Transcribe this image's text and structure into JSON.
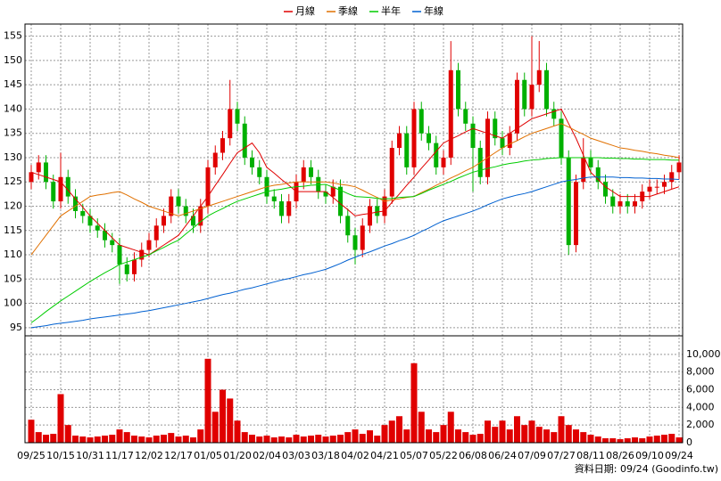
{
  "chart_data": {
    "type": "candlestick",
    "footer": "資料日期: 09/24  (Goodinfo.tw)",
    "categories": [
      "09/25",
      null,
      null,
      null,
      "10/15",
      null,
      null,
      null,
      "10/31",
      null,
      null,
      null,
      "11/17",
      null,
      null,
      null,
      "12/02",
      null,
      null,
      null,
      "12/17",
      null,
      null,
      null,
      "01/05",
      null,
      null,
      null,
      "01/20",
      null,
      null,
      null,
      "02/04",
      null,
      null,
      null,
      "03/03",
      null,
      null,
      null,
      "03/18",
      null,
      null,
      null,
      "04/02",
      null,
      null,
      null,
      "04/21",
      null,
      null,
      null,
      "05/07",
      null,
      null,
      null,
      "05/22",
      null,
      null,
      null,
      "06/08",
      null,
      null,
      null,
      "06/24",
      null,
      null,
      null,
      "07/09",
      null,
      null,
      null,
      "07/27",
      null,
      null,
      null,
      "08/11",
      null,
      null,
      null,
      "08/26",
      null,
      null,
      null,
      "09/10",
      null,
      null,
      null,
      "09/24"
    ],
    "up_color": "#e00000",
    "down_color": "#00b000",
    "open": [
      125,
      127,
      129,
      125,
      121,
      126,
      122,
      119,
      118,
      116,
      115,
      113,
      112,
      108,
      106,
      109,
      111,
      113,
      116,
      118,
      122,
      120,
      118,
      116,
      120,
      128,
      131,
      134,
      140,
      137,
      130,
      128,
      126,
      122,
      121,
      118,
      121,
      125,
      128,
      126,
      123,
      122,
      124,
      118,
      114,
      111,
      116,
      120,
      118,
      122,
      132,
      135,
      128,
      140,
      135,
      133,
      128,
      130,
      148,
      140,
      137,
      132,
      126,
      138,
      134,
      132,
      135,
      146,
      140,
      145,
      148,
      140,
      138,
      130,
      112,
      125,
      130,
      128,
      125,
      122,
      120,
      121,
      120,
      121,
      123,
      124,
      124,
      125,
      127
    ],
    "high": [
      128.5,
      130.5,
      130.5,
      126.5,
      131,
      127.5,
      123.5,
      120.5,
      119.5,
      117.5,
      116.5,
      114.5,
      113.5,
      109.5,
      110.5,
      112.5,
      114.5,
      117.5,
      119.5,
      123.5,
      123.5,
      121.5,
      119.5,
      121.5,
      129.5,
      132.5,
      135.5,
      146,
      141.5,
      138.5,
      131.5,
      129.5,
      127.5,
      123.5,
      122.5,
      122.5,
      126.5,
      129.5,
      129.5,
      127.5,
      124.5,
      125.5,
      125.5,
      119.5,
      115.5,
      117.5,
      121.5,
      121.5,
      123.5,
      133.5,
      136.5,
      136.5,
      141.5,
      141.5,
      136.5,
      134.5,
      131.5,
      154,
      149.5,
      141.5,
      138.5,
      133.5,
      139.5,
      139.5,
      135.5,
      136.5,
      147.5,
      147.5,
      155,
      154,
      149.5,
      141.5,
      139.5,
      131.5,
      126.5,
      134,
      131.5,
      129.5,
      126.5,
      123.5,
      122.5,
      122.5,
      122.5,
      124.5,
      125.5,
      125.5,
      126.5,
      128.5,
      130.5
    ],
    "low": [
      123.5,
      125.5,
      123.5,
      119.5,
      119.5,
      120.5,
      117.5,
      116.5,
      114.5,
      113.5,
      111.5,
      110.5,
      104,
      104.5,
      104.5,
      107.5,
      109.5,
      111.5,
      114.5,
      116.5,
      118.5,
      116.5,
      114.5,
      114.5,
      118.5,
      126.5,
      129.5,
      132.5,
      135.5,
      128.5,
      126.5,
      124.5,
      120.5,
      119.5,
      116.5,
      116.5,
      119.5,
      123.5,
      124.5,
      121.5,
      120.5,
      120.5,
      116.5,
      112.5,
      108,
      109.5,
      114.5,
      116.5,
      116.5,
      120.5,
      130.5,
      126.5,
      126.5,
      133.5,
      131.5,
      126.5,
      126.5,
      128.5,
      138.5,
      135.5,
      123,
      124.5,
      124.5,
      132.5,
      130.5,
      130.5,
      133.5,
      138.5,
      138.5,
      143.5,
      138.5,
      136.5,
      128.5,
      110,
      110.5,
      123.5,
      126.5,
      123.5,
      120.5,
      118.5,
      118.5,
      118.5,
      118.5,
      119.5,
      121.5,
      122.5,
      122.5,
      123.5,
      125.5
    ],
    "close": [
      127,
      129,
      125,
      121,
      126,
      122,
      119,
      118,
      116,
      115,
      113,
      112,
      108,
      106,
      109,
      111,
      113,
      116,
      118,
      122,
      120,
      118,
      116,
      120,
      128,
      131,
      134,
      140,
      137,
      130,
      128,
      126,
      122,
      121,
      118,
      121,
      125,
      128,
      126,
      123,
      122,
      124,
      118,
      114,
      111,
      116,
      120,
      118,
      122,
      132,
      135,
      128,
      140,
      135,
      133,
      128,
      130,
      148,
      140,
      137,
      132,
      126,
      138,
      134,
      132,
      135,
      146,
      140,
      145,
      148,
      140,
      138,
      130,
      112,
      125,
      130,
      128,
      125,
      122,
      120,
      121,
      120,
      121,
      123,
      124,
      124,
      125,
      127,
      129
    ],
    "series": [
      {
        "name": "月線",
        "color": "#e00000",
        "values": [
          127,
          126.5,
          126,
          125.5,
          125,
          123.3,
          121.5,
          119.8,
          118,
          116.5,
          115,
          113.5,
          112,
          111.5,
          111,
          110.5,
          110,
          111,
          112,
          113,
          114,
          116,
          118,
          120,
          122,
          124.3,
          126.5,
          128.8,
          131,
          132,
          133,
          131,
          128,
          126.8,
          125.5,
          124.3,
          123,
          123,
          123,
          123,
          123,
          121.8,
          120.5,
          119.3,
          118,
          118.3,
          118.5,
          118.8,
          119,
          120.8,
          122.5,
          124.3,
          126,
          127.8,
          129.5,
          131.3,
          133,
          133.8,
          134.5,
          135.3,
          136,
          135.5,
          135,
          134.5,
          134,
          135,
          136,
          137,
          138,
          138.5,
          139,
          139.5,
          140,
          137,
          134,
          130.5,
          127,
          125.5,
          124,
          123,
          122,
          122,
          122,
          122,
          122,
          122.5,
          123,
          123.5,
          124
        ]
      },
      {
        "name": "季線",
        "color": "#e07000",
        "values": [
          110,
          112,
          114,
          116,
          118,
          119,
          120,
          121,
          122,
          122.3,
          122.5,
          122.8,
          123,
          122.3,
          121.5,
          120.8,
          120,
          119.5,
          119,
          118.5,
          118,
          118.5,
          119,
          119.5,
          120,
          120.5,
          121,
          121.5,
          122,
          122.5,
          123,
          123.5,
          124,
          124.3,
          124.5,
          124.8,
          125,
          125,
          125,
          125,
          125,
          124.8,
          124.5,
          124.3,
          124,
          123.3,
          122.5,
          121.8,
          121,
          121.3,
          121.5,
          121.8,
          122,
          122.8,
          123.5,
          124.3,
          125,
          125.8,
          126.5,
          127.3,
          128,
          129,
          130,
          131,
          132,
          132.8,
          133.5,
          134.3,
          135,
          135.5,
          136,
          136.5,
          137,
          136.3,
          135.5,
          134.8,
          134,
          133.5,
          133,
          132.5,
          132,
          131.8,
          131.5,
          131.3,
          131,
          130.8,
          130.5,
          130.3,
          130
        ]
      },
      {
        "name": "半年",
        "color": "#00cc00",
        "values": [
          96,
          97.1,
          98.3,
          99.4,
          100.5,
          101.5,
          102.5,
          103.5,
          104.5,
          105.4,
          106.3,
          107.1,
          108,
          108.5,
          109,
          109.5,
          110,
          110.8,
          111.5,
          112.3,
          113,
          114.3,
          115.5,
          116.8,
          118,
          118.8,
          119.5,
          120.3,
          121,
          121.5,
          122,
          122.5,
          123,
          123.3,
          123.5,
          123.8,
          124,
          124.1,
          124.3,
          124.4,
          124.5,
          123.9,
          123.3,
          122.6,
          122,
          121.9,
          121.8,
          121.6,
          121.5,
          121.6,
          121.8,
          121.9,
          122,
          122.6,
          123.3,
          123.9,
          124.5,
          125.1,
          125.8,
          126.4,
          127,
          127.4,
          127.8,
          128.1,
          128.5,
          128.8,
          129,
          129.3,
          129.5,
          129.6,
          129.8,
          129.9,
          130,
          130,
          130,
          130,
          130,
          130,
          129.9,
          129.9,
          129.8,
          129.8,
          129.7,
          129.7,
          129.6,
          129.6,
          129.6,
          129.5,
          129.5
        ]
      },
      {
        "name": "年線",
        "color": "#0060d0",
        "values": [
          95,
          95.2,
          95.4,
          95.7,
          95.9,
          96.1,
          96.3,
          96.5,
          96.8,
          97,
          97.2,
          97.4,
          97.6,
          97.8,
          98,
          98.3,
          98.5,
          98.8,
          99.1,
          99.4,
          99.7,
          100,
          100.3,
          100.6,
          101,
          101.4,
          101.8,
          102.1,
          102.5,
          102.9,
          103.2,
          103.6,
          104,
          104.4,
          104.8,
          105.1,
          105.5,
          105.9,
          106.2,
          106.6,
          107,
          107.6,
          108.2,
          108.9,
          109.5,
          110.1,
          110.6,
          111.2,
          111.8,
          112.3,
          112.9,
          113.4,
          114,
          114.8,
          115.5,
          116.3,
          117,
          117.5,
          118,
          118.5,
          119,
          119.6,
          120.3,
          120.9,
          121.5,
          121.9,
          122.3,
          122.6,
          123,
          123.5,
          124,
          124.5,
          125,
          125.3,
          125.5,
          125.8,
          126,
          126,
          126,
          126,
          125.9,
          125.9,
          125.8,
          125.8,
          125.7,
          125.7,
          125.6,
          125.6,
          125.5
        ]
      }
    ],
    "ylim": [
      93.5,
      157.5
    ],
    "yticks": [
      95,
      100,
      105,
      110,
      115,
      120,
      125,
      130,
      135,
      140,
      145,
      150,
      155
    ],
    "grid": true,
    "volume": {
      "type": "bar",
      "color": "#e00000",
      "values": [
        2600,
        1200,
        900,
        1000,
        5500,
        2000,
        800,
        700,
        600,
        700,
        800,
        900,
        1500,
        1200,
        800,
        700,
        600,
        800,
        900,
        1100,
        700,
        800,
        600,
        1500,
        9500,
        3500,
        6000,
        5000,
        2500,
        1200,
        900,
        700,
        800,
        600,
        700,
        600,
        900,
        700,
        800,
        900,
        700,
        800,
        900,
        1200,
        1500,
        1000,
        1400,
        800,
        2000,
        2500,
        3000,
        1500,
        9000,
        3500,
        1500,
        1200,
        2000,
        3500,
        1500,
        1200,
        900,
        1000,
        2500,
        1800,
        2500,
        1500,
        3000,
        2000,
        2500,
        1800,
        1500,
        1200,
        3000,
        2000,
        1500,
        1200,
        900,
        700,
        500,
        500,
        400,
        500,
        600,
        500,
        700,
        800,
        900,
        1000,
        600
      ],
      "ylim": [
        0,
        12000
      ],
      "yticks": [
        0,
        {
          "value": 2000,
          "label": "2,000"
        },
        {
          "value": 4000,
          "label": "4,000"
        },
        {
          "value": 6000,
          "label": "6,000"
        },
        {
          "value": 8000,
          "label": "8,000"
        },
        {
          "value": 10000,
          "label": "10,000"
        }
      ]
    }
  }
}
